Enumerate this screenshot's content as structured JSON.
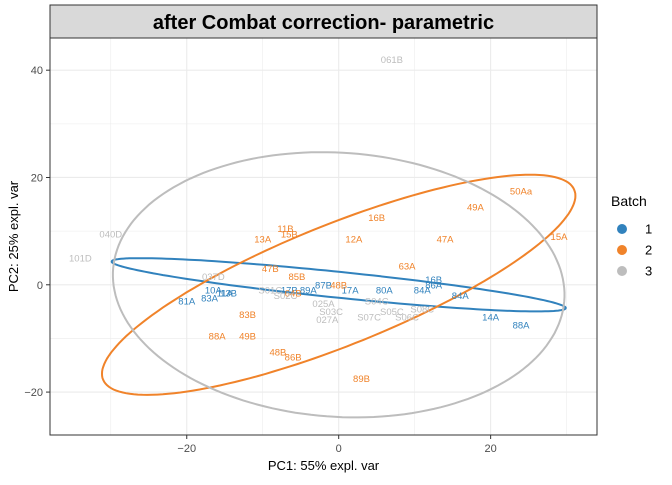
{
  "chart_data": {
    "type": "scatter",
    "title": "after Combat correction- parametric",
    "xlabel": "PC1: 55% expl. var",
    "ylabel": "PC2: 25% expl. var",
    "xlim": [
      -38,
      34
    ],
    "ylim": [
      -28,
      46
    ],
    "xticks": [
      -20,
      0,
      20
    ],
    "yticks": [
      -20,
      0,
      20,
      40
    ],
    "grid": true,
    "legend": {
      "title": "Batch",
      "placement": "right",
      "entries": [
        {
          "label": "1",
          "color": "#3182bd"
        },
        {
          "label": "2",
          "color": "#f0832a"
        },
        {
          "label": "3",
          "color": "#bdbdbd"
        }
      ]
    },
    "series": [
      {
        "name": "1",
        "color": "#3182bd",
        "ellipse": {
          "cx": 0,
          "cy": 0,
          "rx": 30.2,
          "ry": 2.4,
          "angle_deg": -8.3
        },
        "points": [
          {
            "x": -20,
            "y": -3,
            "label": "81A"
          },
          {
            "x": -17,
            "y": -2.5,
            "label": "83A"
          },
          {
            "x": -15,
            "y": -1.5,
            "label": "11A"
          },
          {
            "x": -16.5,
            "y": -1,
            "label": "10A"
          },
          {
            "x": -14.5,
            "y": -1.5,
            "label": "13B"
          },
          {
            "x": -6.5,
            "y": -1,
            "label": "17B"
          },
          {
            "x": -4,
            "y": -1,
            "label": "89A"
          },
          {
            "x": 1.5,
            "y": -1,
            "label": "17A"
          },
          {
            "x": -2,
            "y": 0,
            "label": "87B"
          },
          {
            "x": 6,
            "y": -1,
            "label": "80A"
          },
          {
            "x": 11,
            "y": -1,
            "label": "84A"
          },
          {
            "x": 12.5,
            "y": 0,
            "label": "86A"
          },
          {
            "x": 12.5,
            "y": 1,
            "label": "16B"
          },
          {
            "x": 16,
            "y": -2,
            "label": "84A"
          },
          {
            "x": 20,
            "y": -6,
            "label": "14A"
          },
          {
            "x": 24,
            "y": -7.5,
            "label": "88A"
          }
        ]
      },
      {
        "name": "2",
        "color": "#f0832a",
        "ellipse": {
          "cx": 0,
          "cy": 0,
          "rx": 35.8,
          "ry": 10.5,
          "angle_deg": 31
        },
        "points": [
          {
            "x": 24,
            "y": 17.5,
            "label": "50Aa"
          },
          {
            "x": 18,
            "y": 14.5,
            "label": "49A"
          },
          {
            "x": 5,
            "y": 12.5,
            "label": "16B"
          },
          {
            "x": -7,
            "y": 10.5,
            "label": "11B"
          },
          {
            "x": -6.5,
            "y": 9.5,
            "label": "15B"
          },
          {
            "x": -10,
            "y": 8.5,
            "label": "13A"
          },
          {
            "x": 2,
            "y": 8.5,
            "label": "12A"
          },
          {
            "x": 14,
            "y": 8.5,
            "label": "47A"
          },
          {
            "x": 29,
            "y": 9,
            "label": "15A"
          },
          {
            "x": 9,
            "y": 3.5,
            "label": "63A"
          },
          {
            "x": -9,
            "y": 3,
            "label": "47B"
          },
          {
            "x": -5.5,
            "y": 1.5,
            "label": "85B"
          },
          {
            "x": 0,
            "y": 0,
            "label": "48B"
          },
          {
            "x": -6,
            "y": -1.5,
            "label": "64B"
          },
          {
            "x": -12,
            "y": -5.5,
            "label": "83B"
          },
          {
            "x": -16,
            "y": -9.5,
            "label": "88A"
          },
          {
            "x": -12,
            "y": -9.5,
            "label": "49B"
          },
          {
            "x": -8,
            "y": -12.5,
            "label": "48B"
          },
          {
            "x": -6,
            "y": -13.5,
            "label": "86B"
          },
          {
            "x": 3,
            "y": -17.5,
            "label": "89B"
          }
        ]
      },
      {
        "name": "3",
        "color": "#bdbdbd",
        "ellipse": {
          "cx": 0,
          "cy": 0,
          "rx": 29.9,
          "ry": 24.5,
          "angle_deg": -11
        },
        "points": [
          {
            "x": 7,
            "y": 42,
            "label": "061B"
          },
          {
            "x": -30,
            "y": 9.5,
            "label": "040D"
          },
          {
            "x": -34,
            "y": 5,
            "label": "101D"
          },
          {
            "x": -16.5,
            "y": 1.5,
            "label": "037D"
          },
          {
            "x": -9,
            "y": -1,
            "label": "S01C"
          },
          {
            "x": -7,
            "y": -2,
            "label": "S02C"
          },
          {
            "x": -2,
            "y": -3.5,
            "label": "025A"
          },
          {
            "x": -1,
            "y": -5,
            "label": "S03C"
          },
          {
            "x": -1.5,
            "y": -6.5,
            "label": "027A"
          },
          {
            "x": 5,
            "y": -3,
            "label": "S04C"
          },
          {
            "x": 7,
            "y": -5,
            "label": "S05C"
          },
          {
            "x": 9,
            "y": -6,
            "label": "S06C"
          },
          {
            "x": 4,
            "y": -6,
            "label": "S07C"
          },
          {
            "x": 11,
            "y": -4.5,
            "label": "S08C"
          }
        ]
      }
    ]
  }
}
